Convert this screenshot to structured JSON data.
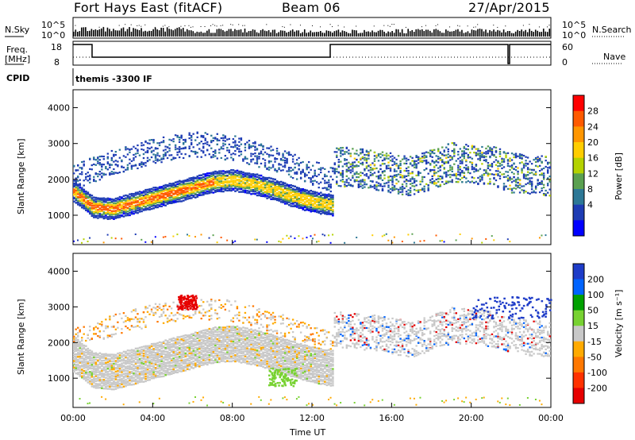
{
  "header": {
    "station": "Fort Hays East (fitACF)",
    "beam": "Beam 06",
    "date": "27/Apr/2015"
  },
  "top_panels": {
    "nsky_label": "N.Sky",
    "nsky_ticks": [
      "10^5",
      "10^0"
    ],
    "nsearch_label": "N.Search",
    "nsearch_ticks": [
      "10^5",
      "10^0"
    ],
    "freq_label_1": "Freq.",
    "freq_label_2": "[MHz]",
    "freq_ticks": [
      "18",
      "8"
    ],
    "nave_label": "Nave",
    "nave_ticks": [
      "60",
      "0"
    ],
    "cpid_label": "CPID",
    "cpid_value": "themis -3300 IF"
  },
  "colorbar_power": {
    "title": "Power [dB]",
    "labels": [
      "28",
      "24",
      "20",
      "16",
      "12",
      "8",
      "4"
    ],
    "colors": [
      "#ff0000",
      "#ff5a00",
      "#ff9600",
      "#ffcd00",
      "#b4d200",
      "#5aa050",
      "#2d7896",
      "#1e3cb4",
      "#0000ff"
    ]
  },
  "colorbar_velocity": {
    "title": "Velocity [m s⁻¹]",
    "labels": [
      "200",
      "100",
      "50",
      "15",
      "-15",
      "-50",
      "-100",
      "-200"
    ],
    "colors": [
      "#1e3cc8",
      "#0064ff",
      "#00a000",
      "#78d232",
      "#c8c8c8",
      "#ffaa00",
      "#ff7800",
      "#ff3200",
      "#e60000"
    ]
  },
  "chart_data": [
    {
      "type": "heatmap",
      "title": "Power",
      "ylabel": "Slant Range [km]",
      "xlabel": "Time UT",
      "x_ticks": [
        "00:00",
        "04:00",
        "08:00",
        "12:00",
        "16:00",
        "20:00",
        "00:00"
      ],
      "y_ticks": [
        1000,
        2000,
        3000,
        4000
      ],
      "xlim_hours": [
        0,
        24
      ],
      "ylim_km": [
        180,
        4500
      ],
      "bands": [
        {
          "t": [
            0,
            1,
            2,
            3,
            4,
            5,
            6,
            7,
            8,
            9,
            10,
            11,
            12,
            13
          ],
          "r": [
            1700,
            1250,
            1200,
            1350,
            1500,
            1650,
            1800,
            1950,
            2000,
            1900,
            1750,
            1550,
            1400,
            1300
          ],
          "level": "high"
        },
        {
          "t": [
            0,
            2,
            4,
            6,
            8,
            10,
            12,
            13
          ],
          "r": [
            2100,
            2500,
            2800,
            3000,
            2900,
            2600,
            2200,
            2000
          ],
          "level": "low"
        },
        {
          "t": [
            13,
            15,
            17,
            19,
            21,
            22,
            24
          ],
          "r": [
            2400,
            2300,
            2100,
            2500,
            2400,
            2200,
            2100
          ],
          "level": "mid"
        }
      ]
    },
    {
      "type": "heatmap",
      "title": "Velocity",
      "ylabel": "Slant Range [km]",
      "xlabel": "Time UT",
      "x_ticks": [
        "00:00",
        "04:00",
        "08:00",
        "12:00",
        "16:00",
        "20:00",
        "00:00"
      ],
      "y_ticks": [
        1000,
        2000,
        3000,
        4000
      ],
      "xlim_hours": [
        0,
        24
      ],
      "ylim_km": [
        180,
        4500
      ],
      "features": [
        {
          "t": [
            5.2,
            6.2
          ],
          "r": [
            2950,
            3350
          ],
          "velocity": -200
        },
        {
          "t": [
            9.8,
            11.2
          ],
          "r": [
            800,
            1300
          ],
          "velocity": 50
        },
        {
          "t": [
            20.0,
            24.0
          ],
          "r": [
            2700,
            3300
          ],
          "velocity": 200
        }
      ]
    }
  ]
}
